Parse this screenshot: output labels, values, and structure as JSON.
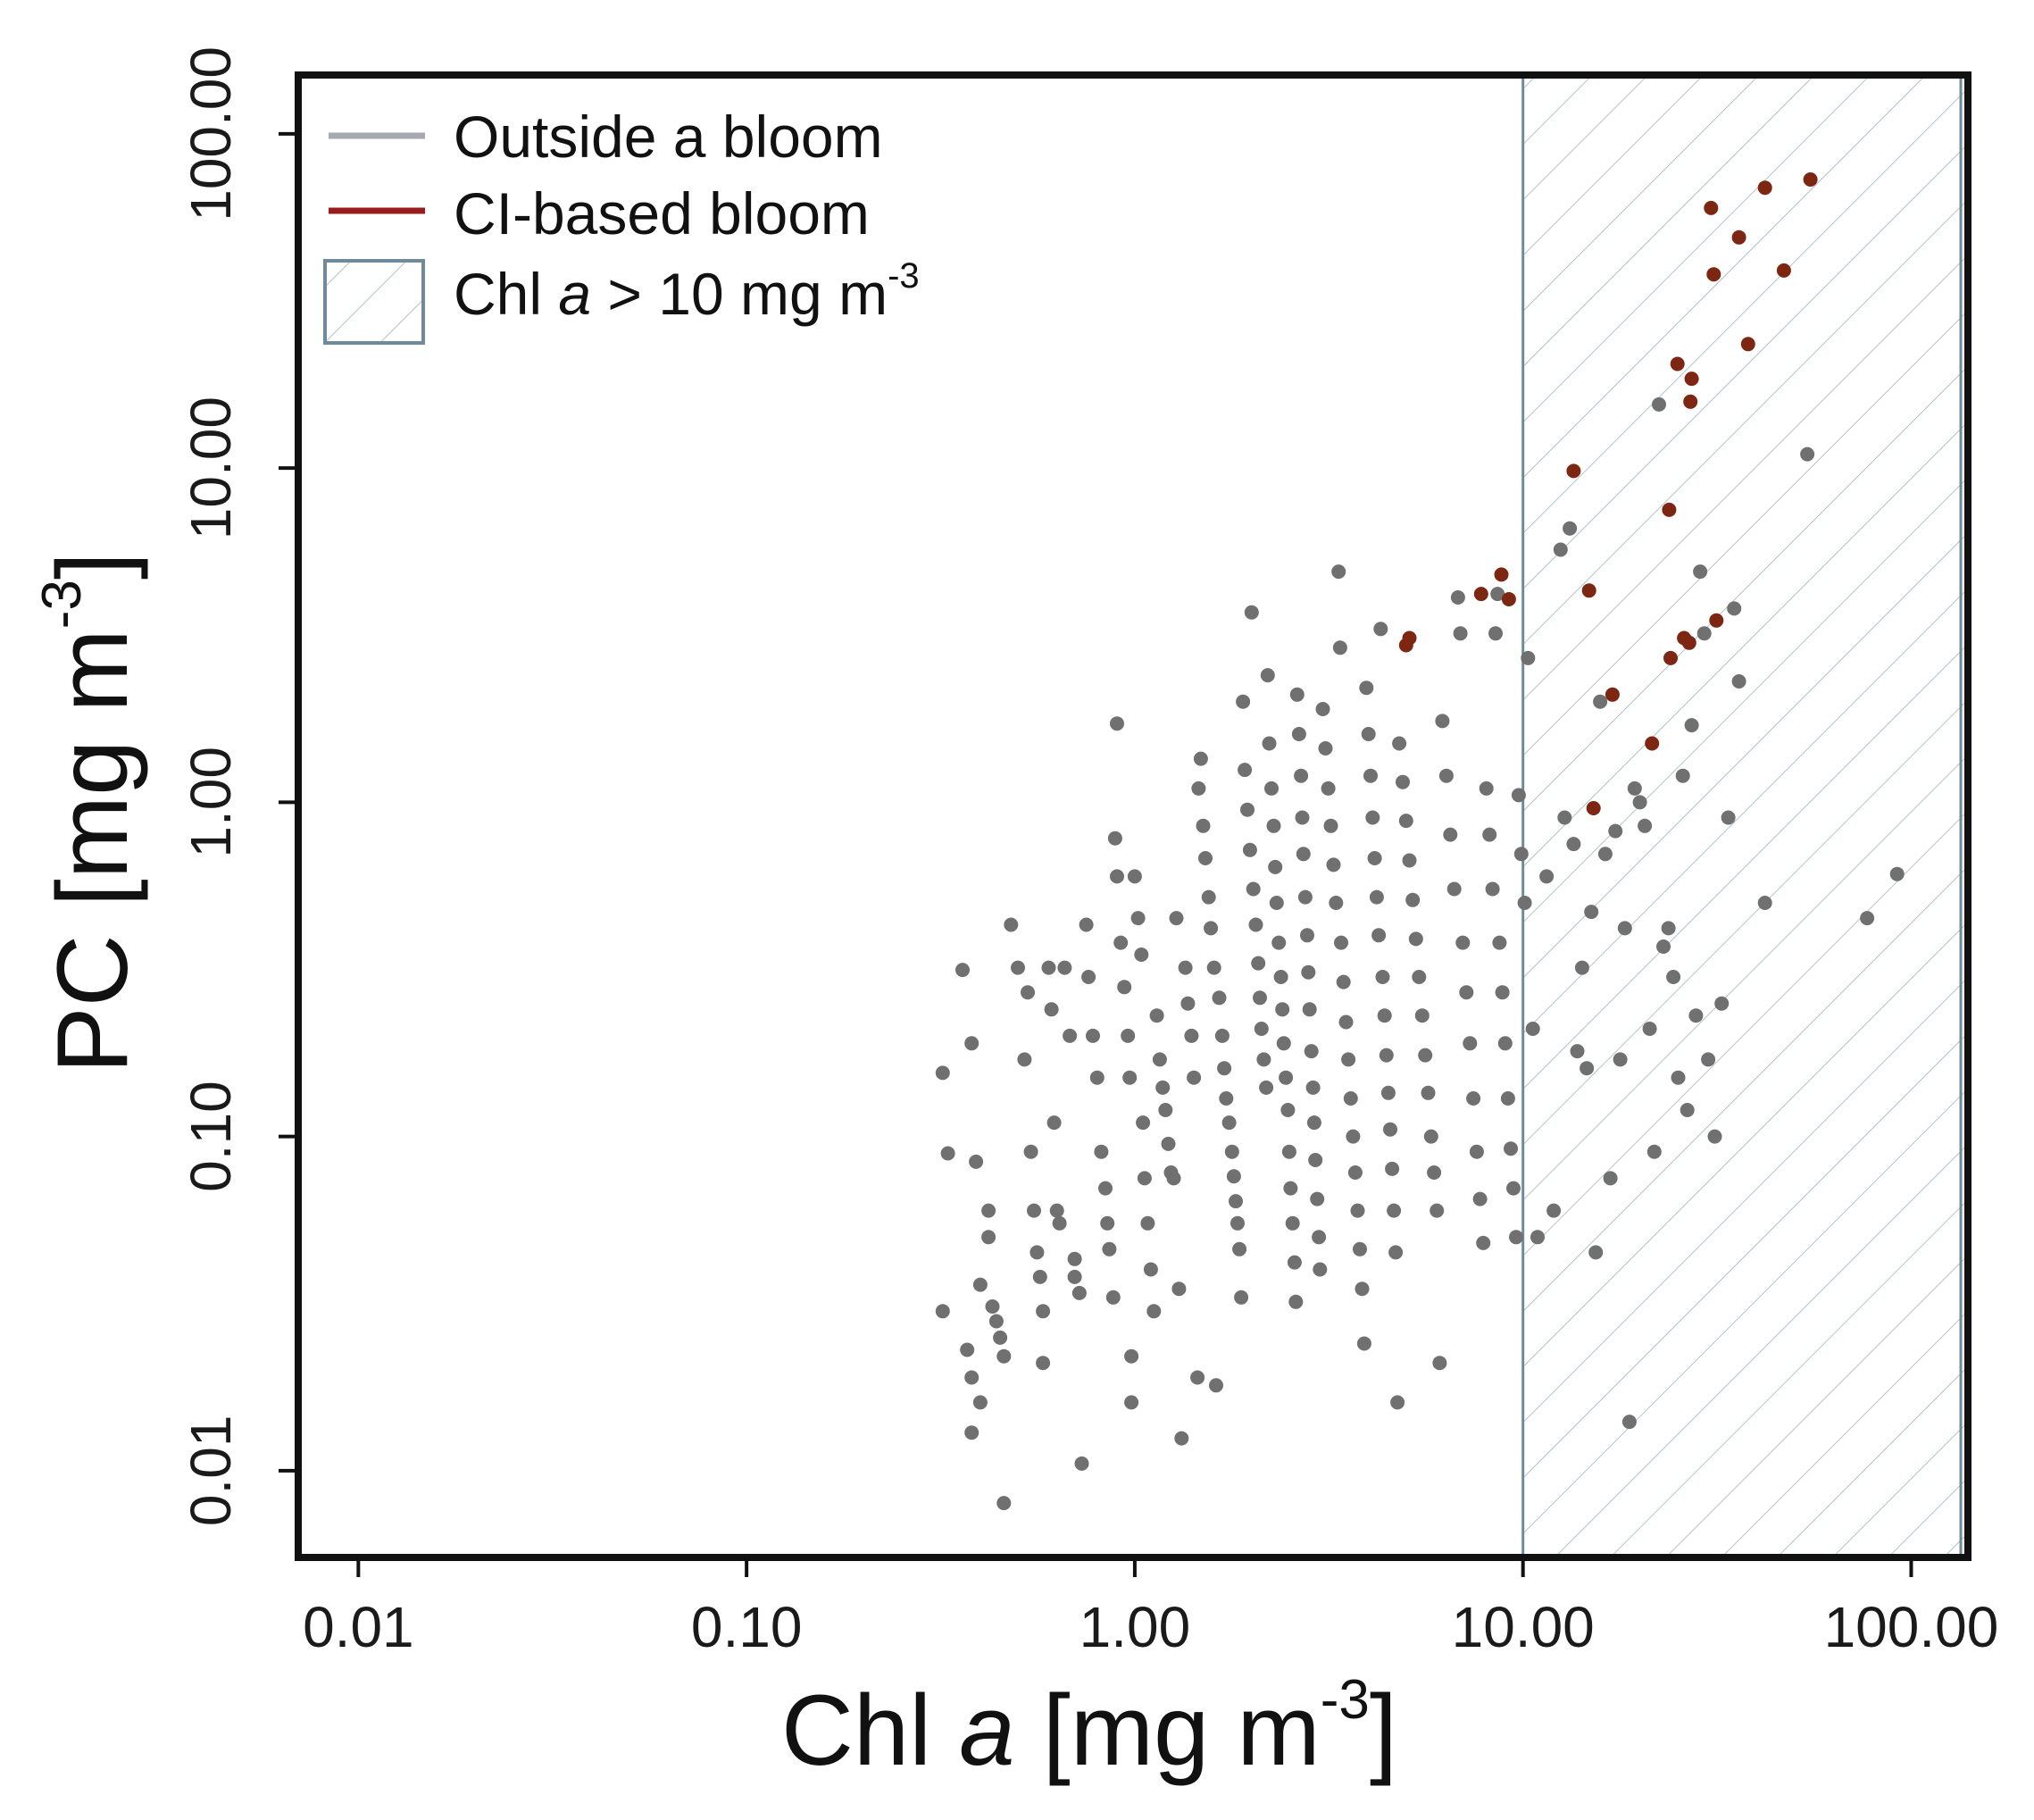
{
  "chart_data": {
    "type": "scatter",
    "xscale": "log",
    "yscale": "log",
    "xlim": [
      0.007,
      140
    ],
    "ylim": [
      0.0055,
      150
    ],
    "x_ticks": [
      0.01,
      0.1,
      1,
      10,
      100
    ],
    "x_tick_labels": [
      "0.01",
      "0.10",
      "1.00",
      "10.00",
      "100.00"
    ],
    "y_ticks": [
      0.01,
      0.1,
      1,
      10,
      100
    ],
    "y_tick_labels": [
      "0.01",
      "0.10",
      "1.00",
      "10.00",
      "100.00"
    ],
    "xlabel": {
      "main": "Chl ",
      "italic": "a",
      "unit_open": " [mg m",
      "exp": "-3",
      "unit_close": "]"
    },
    "ylabel": {
      "main": "PC [mg m",
      "exp": "-3",
      "close": "]"
    },
    "threshold_x": 10,
    "legend": {
      "position": "top-left",
      "entries": [
        {
          "label": "Outside a bloom",
          "kind": "line",
          "color": "#a8a8b0"
        },
        {
          "label": "CI-based bloom",
          "kind": "line",
          "color": "#9b1c1c"
        },
        {
          "label_pre": "Chl ",
          "label_italic": "a",
          "label_post": " > 10 mg m",
          "label_exp": "-3",
          "kind": "hatch",
          "color": "#6f8a99"
        }
      ]
    },
    "colors": {
      "outside": "#707070",
      "bloom": "#7d2712",
      "hatch": "#9fb3bd",
      "threshold": "#6f8a99",
      "frame": "#111111"
    },
    "series": [
      {
        "name": "Outside a bloom",
        "points": [
          [
            0.32,
            0.155
          ],
          [
            0.33,
            0.089
          ],
          [
            0.32,
            0.03
          ],
          [
            0.36,
            0.315
          ],
          [
            0.38,
            0.19
          ],
          [
            0.39,
            0.084
          ],
          [
            0.37,
            0.023
          ],
          [
            0.38,
            0.019
          ],
          [
            0.38,
            0.013
          ],
          [
            0.4,
            0.016
          ],
          [
            0.4,
            0.036
          ],
          [
            0.42,
            0.06
          ],
          [
            0.42,
            0.05
          ],
          [
            0.43,
            0.031
          ],
          [
            0.44,
            0.028
          ],
          [
            0.45,
            0.025
          ],
          [
            0.46,
            0.022
          ],
          [
            0.46,
            0.008
          ],
          [
            0.48,
            0.43
          ],
          [
            0.5,
            0.32
          ],
          [
            0.52,
            0.17
          ],
          [
            0.53,
            0.27
          ],
          [
            0.54,
            0.09
          ],
          [
            0.55,
            0.06
          ],
          [
            0.56,
            0.045
          ],
          [
            0.57,
            0.038
          ],
          [
            0.58,
            0.03
          ],
          [
            0.58,
            0.021
          ],
          [
            0.6,
            0.32
          ],
          [
            0.61,
            0.24
          ],
          [
            0.62,
            0.11
          ],
          [
            0.63,
            0.06
          ],
          [
            0.64,
            0.055
          ],
          [
            0.66,
            0.32
          ],
          [
            0.68,
            0.2
          ],
          [
            0.7,
            0.043
          ],
          [
            0.7,
            0.038
          ],
          [
            0.72,
            0.034
          ],
          [
            0.73,
            0.0105
          ],
          [
            0.75,
            0.43
          ],
          [
            0.76,
            0.3
          ],
          [
            0.78,
            0.2
          ],
          [
            0.8,
            0.15
          ],
          [
            0.82,
            0.09
          ],
          [
            0.84,
            0.07
          ],
          [
            0.85,
            0.055
          ],
          [
            0.86,
            0.046
          ],
          [
            0.88,
            0.033
          ],
          [
            0.89,
            0.78
          ],
          [
            0.9,
            1.72
          ],
          [
            0.9,
            0.6
          ],
          [
            0.92,
            0.38
          ],
          [
            0.94,
            0.28
          ],
          [
            0.96,
            0.2
          ],
          [
            0.97,
            0.15
          ],
          [
            0.98,
            0.022
          ],
          [
            0.98,
            0.016
          ],
          [
            1.0,
            0.6
          ],
          [
            1.02,
            0.45
          ],
          [
            1.04,
            0.35
          ],
          [
            1.05,
            0.11
          ],
          [
            1.06,
            0.075
          ],
          [
            1.08,
            0.055
          ],
          [
            1.1,
            0.04
          ],
          [
            1.12,
            0.03
          ],
          [
            1.14,
            0.23
          ],
          [
            1.16,
            0.17
          ],
          [
            1.18,
            0.14
          ],
          [
            1.2,
            0.12
          ],
          [
            1.22,
            0.095
          ],
          [
            1.24,
            0.078
          ],
          [
            1.26,
            0.075
          ],
          [
            1.28,
            0.45
          ],
          [
            1.3,
            0.035
          ],
          [
            1.32,
            0.0125
          ],
          [
            1.35,
            0.32
          ],
          [
            1.37,
            0.25
          ],
          [
            1.4,
            0.2
          ],
          [
            1.42,
            0.15
          ],
          [
            1.45,
            0.019
          ],
          [
            1.46,
            1.1
          ],
          [
            1.48,
            1.35
          ],
          [
            1.5,
            0.85
          ],
          [
            1.52,
            0.68
          ],
          [
            1.55,
            0.52
          ],
          [
            1.57,
            0.42
          ],
          [
            1.6,
            0.32
          ],
          [
            1.62,
            0.018
          ],
          [
            1.65,
            0.26
          ],
          [
            1.68,
            0.2
          ],
          [
            1.7,
            0.16
          ],
          [
            1.72,
            0.13
          ],
          [
            1.75,
            0.11
          ],
          [
            1.78,
            0.09
          ],
          [
            1.8,
            0.076
          ],
          [
            1.82,
            0.064
          ],
          [
            1.84,
            0.055
          ],
          [
            1.86,
            0.046
          ],
          [
            1.88,
            0.033
          ],
          [
            1.9,
            2.0
          ],
          [
            1.92,
            1.25
          ],
          [
            1.95,
            0.95
          ],
          [
            1.98,
            0.72
          ],
          [
            2.0,
            3.7
          ],
          [
            2.02,
            0.55
          ],
          [
            2.05,
            0.43
          ],
          [
            2.08,
            0.33
          ],
          [
            2.1,
            0.26
          ],
          [
            2.12,
            0.21
          ],
          [
            2.15,
            0.17
          ],
          [
            2.18,
            0.14
          ],
          [
            2.2,
            2.4
          ],
          [
            2.22,
            1.5
          ],
          [
            2.25,
            1.1
          ],
          [
            2.28,
            0.85
          ],
          [
            2.3,
            0.64
          ],
          [
            2.32,
            0.5
          ],
          [
            2.35,
            0.38
          ],
          [
            2.38,
            0.3
          ],
          [
            2.4,
            0.24
          ],
          [
            2.42,
            0.19
          ],
          [
            2.45,
            0.15
          ],
          [
            2.48,
            0.12
          ],
          [
            2.5,
            0.09
          ],
          [
            2.52,
            0.07
          ],
          [
            2.55,
            0.055
          ],
          [
            2.58,
            0.042
          ],
          [
            2.6,
            0.032
          ],
          [
            2.62,
            2.1
          ],
          [
            2.65,
            1.6
          ],
          [
            2.68,
            1.2
          ],
          [
            2.7,
            0.9
          ],
          [
            2.72,
            0.7
          ],
          [
            2.75,
            0.52
          ],
          [
            2.78,
            0.4
          ],
          [
            2.8,
            0.31
          ],
          [
            2.82,
            0.24
          ],
          [
            2.85,
            0.18
          ],
          [
            2.88,
            0.14
          ],
          [
            2.9,
            0.11
          ],
          [
            2.92,
            0.085
          ],
          [
            2.95,
            0.065
          ],
          [
            2.98,
            0.05
          ],
          [
            3.0,
            0.04
          ],
          [
            3.05,
            1.9
          ],
          [
            3.1,
            1.45
          ],
          [
            3.15,
            1.1
          ],
          [
            3.2,
            0.85
          ],
          [
            3.25,
            0.65
          ],
          [
            3.3,
            0.5
          ],
          [
            3.35,
            4.9
          ],
          [
            3.38,
            2.9
          ],
          [
            3.4,
            0.38
          ],
          [
            3.45,
            0.29
          ],
          [
            3.5,
            0.22
          ],
          [
            3.55,
            0.17
          ],
          [
            3.6,
            0.13
          ],
          [
            3.65,
            0.1
          ],
          [
            3.7,
            0.078
          ],
          [
            3.75,
            0.06
          ],
          [
            3.8,
            0.046
          ],
          [
            3.85,
            0.035
          ],
          [
            3.9,
            0.024
          ],
          [
            3.95,
            2.2
          ],
          [
            4.0,
            1.6
          ],
          [
            4.05,
            1.2
          ],
          [
            4.1,
            0.9
          ],
          [
            4.15,
            0.68
          ],
          [
            4.2,
            0.52
          ],
          [
            4.25,
            0.4
          ],
          [
            4.3,
            3.3
          ],
          [
            4.35,
            0.3
          ],
          [
            4.4,
            0.23
          ],
          [
            4.45,
            0.175
          ],
          [
            4.5,
            0.135
          ],
          [
            4.55,
            0.105
          ],
          [
            4.6,
            0.08
          ],
          [
            4.65,
            0.06
          ],
          [
            4.7,
            0.045
          ],
          [
            4.75,
            0.016
          ],
          [
            4.8,
            1.5
          ],
          [
            4.9,
            1.15
          ],
          [
            5.0,
            0.88
          ],
          [
            5.1,
            0.67
          ],
          [
            5.2,
            0.51
          ],
          [
            5.3,
            0.39
          ],
          [
            5.4,
            0.3
          ],
          [
            5.5,
            0.23
          ],
          [
            5.6,
            0.175
          ],
          [
            5.7,
            0.135
          ],
          [
            5.8,
            0.1
          ],
          [
            5.9,
            0.078
          ],
          [
            6.0,
            0.06
          ],
          [
            6.1,
            0.021
          ],
          [
            6.2,
            1.75
          ],
          [
            6.35,
            1.2
          ],
          [
            6.5,
            0.8
          ],
          [
            6.65,
            0.55
          ],
          [
            6.8,
            4.1
          ],
          [
            6.9,
            3.2
          ],
          [
            7.0,
            0.38
          ],
          [
            7.15,
            0.27
          ],
          [
            7.3,
            0.19
          ],
          [
            7.45,
            0.13
          ],
          [
            7.6,
            0.09
          ],
          [
            7.75,
            0.065
          ],
          [
            7.9,
            0.048
          ],
          [
            8.05,
            1.1
          ],
          [
            8.2,
            0.8
          ],
          [
            8.35,
            0.55
          ],
          [
            8.5,
            3.2
          ],
          [
            8.6,
            4.2
          ],
          [
            8.7,
            0.38
          ],
          [
            8.85,
            0.27
          ],
          [
            9.0,
            0.19
          ],
          [
            9.15,
            0.13
          ],
          [
            9.3,
            0.092
          ],
          [
            9.45,
            0.07
          ],
          [
            9.6,
            0.05
          ],
          [
            9.75,
            1.05
          ],
          [
            9.9,
            0.7
          ],
          [
            10.1,
            0.5
          ],
          [
            10.3,
            2.7
          ],
          [
            10.6,
            0.21
          ],
          [
            10.9,
            0.05
          ],
          [
            11.5,
            0.6
          ],
          [
            12.0,
            0.06
          ],
          [
            12.5,
            5.7
          ],
          [
            12.8,
            0.9
          ],
          [
            13.2,
            6.6
          ],
          [
            13.5,
            0.75
          ],
          [
            13.8,
            0.18
          ],
          [
            14.2,
            0.32
          ],
          [
            14.6,
            0.16
          ],
          [
            15.0,
            0.47
          ],
          [
            15.4,
            0.045
          ],
          [
            15.8,
            2.0
          ],
          [
            16.3,
            0.7
          ],
          [
            16.8,
            0.075
          ],
          [
            17.3,
            0.82
          ],
          [
            17.8,
            0.17
          ],
          [
            18.3,
            0.42
          ],
          [
            18.8,
            0.014
          ],
          [
            19.4,
            1.1
          ],
          [
            20.0,
            1.0
          ],
          [
            20.6,
            0.85
          ],
          [
            21.2,
            0.21
          ],
          [
            21.8,
            0.09
          ],
          [
            22.4,
            15.5
          ],
          [
            23.0,
            0.37
          ],
          [
            23.7,
            0.42
          ],
          [
            24.4,
            0.3
          ],
          [
            25.1,
            0.15
          ],
          [
            25.8,
            1.2
          ],
          [
            26.5,
            0.12
          ],
          [
            27.2,
            1.7
          ],
          [
            27.9,
            0.23
          ],
          [
            28.6,
            4.9
          ],
          [
            29.3,
            3.2
          ],
          [
            30.0,
            0.17
          ],
          [
            31.2,
            0.1
          ],
          [
            32.5,
            0.25
          ],
          [
            33.8,
            0.9
          ],
          [
            35.0,
            3.8
          ],
          [
            36.0,
            2.3
          ],
          [
            42.0,
            0.5
          ],
          [
            54.0,
            11.0
          ],
          [
            77.0,
            0.45
          ],
          [
            92.0,
            0.61
          ]
        ]
      },
      {
        "name": "CI-based bloom",
        "points": [
          [
            5.0,
            2.95
          ],
          [
            5.1,
            3.1
          ],
          [
            7.8,
            4.2
          ],
          [
            8.8,
            4.8
          ],
          [
            9.2,
            4.05
          ],
          [
            13.5,
            9.8
          ],
          [
            14.8,
            4.3
          ],
          [
            15.2,
            0.96
          ],
          [
            17.0,
            2.1
          ],
          [
            21.5,
            1.5
          ],
          [
            23.8,
            7.5
          ],
          [
            24.0,
            2.7
          ],
          [
            25.0,
            20.5
          ],
          [
            26.0,
            3.1
          ],
          [
            26.8,
            3.0
          ],
          [
            27.2,
            18.5
          ],
          [
            27.0,
            15.8
          ],
          [
            30.5,
            60.0
          ],
          [
            31.0,
            38.0
          ],
          [
            31.5,
            3.5
          ],
          [
            36.0,
            49.0
          ],
          [
            38.0,
            23.5
          ],
          [
            42.0,
            69.0
          ],
          [
            47.0,
            39.0
          ],
          [
            55.0,
            73.0
          ]
        ]
      }
    ]
  }
}
